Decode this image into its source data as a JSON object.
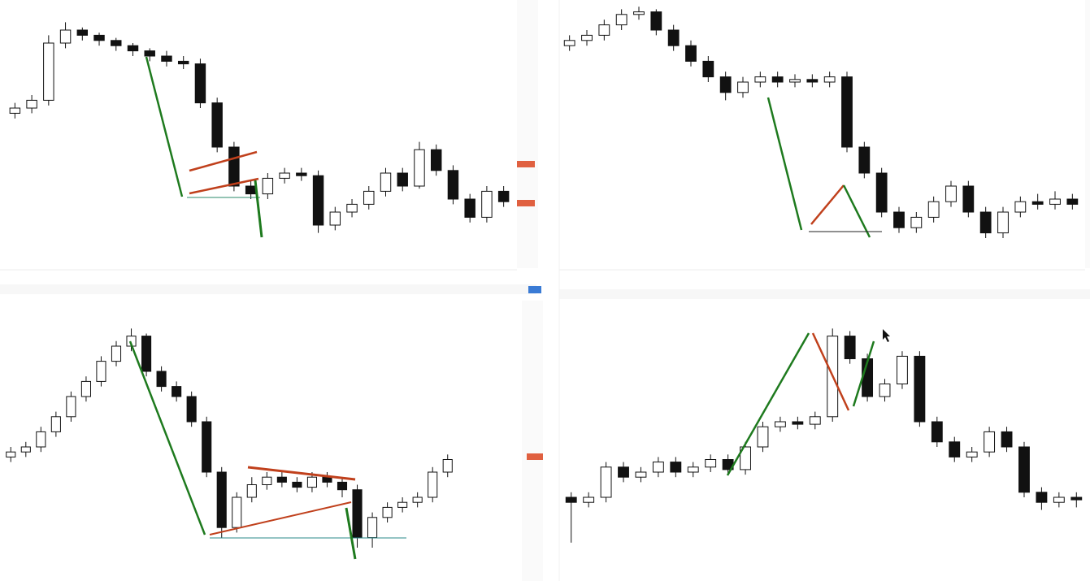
{
  "chart_data": [
    {
      "type": "candlestick",
      "up_color": "#ffffff",
      "down_color": "#111111",
      "ylim": [
        0,
        100
      ],
      "open": [
        58,
        60,
        63,
        85,
        90,
        88,
        86,
        84,
        82,
        80,
        78,
        77,
        62,
        45,
        30,
        27,
        33,
        35,
        34,
        15,
        20,
        23,
        28,
        35,
        30,
        44,
        36,
        25,
        18,
        28
      ],
      "high": [
        62,
        65,
        88,
        93,
        91,
        89,
        87,
        85,
        83,
        82,
        80,
        79,
        64,
        47,
        32,
        35,
        37,
        37,
        36,
        22,
        25,
        30,
        37,
        37,
        47,
        46,
        38,
        27,
        30,
        30
      ],
      "low": [
        56,
        58,
        61,
        83,
        86,
        84,
        82,
        80,
        78,
        76,
        75,
        60,
        43,
        28,
        25,
        25,
        31,
        32,
        12,
        13,
        18,
        21,
        26,
        28,
        29,
        34,
        23,
        16,
        16,
        22
      ],
      "close": [
        60,
        63,
        85,
        90,
        88,
        86,
        84,
        82,
        80,
        78,
        77,
        62,
        45,
        30,
        27,
        33,
        35,
        34,
        15,
        20,
        23,
        28,
        35,
        30,
        44,
        36,
        25,
        18,
        28,
        24
      ]
    },
    {
      "type": "candlestick",
      "up_color": "#ffffff",
      "down_color": "#111111",
      "ylim": [
        0,
        100
      ],
      "open": [
        84,
        86,
        88,
        92,
        96,
        97,
        90,
        84,
        78,
        72,
        66,
        70,
        72,
        70,
        71,
        70,
        72,
        45,
        35,
        20,
        14,
        18,
        24,
        30,
        20,
        12,
        20,
        24,
        23,
        25
      ],
      "high": [
        88,
        90,
        94,
        98,
        99,
        98,
        92,
        86,
        80,
        74,
        72,
        74,
        74,
        73,
        73,
        74,
        74,
        47,
        37,
        22,
        20,
        26,
        32,
        32,
        22,
        22,
        26,
        27,
        28,
        27
      ],
      "low": [
        82,
        84,
        86,
        90,
        94,
        88,
        82,
        76,
        70,
        63,
        64,
        68,
        68,
        68,
        68,
        68,
        43,
        33,
        18,
        12,
        12,
        16,
        22,
        18,
        10,
        10,
        18,
        21,
        21,
        21
      ],
      "close": [
        86,
        88,
        92,
        96,
        97,
        90,
        84,
        78,
        72,
        66,
        70,
        72,
        70,
        71,
        70,
        72,
        45,
        35,
        20,
        14,
        18,
        24,
        30,
        20,
        12,
        20,
        24,
        23,
        25,
        23
      ]
    },
    {
      "type": "candlestick",
      "up_color": "#ffffff",
      "down_color": "#111111",
      "ylim": [
        0,
        100
      ],
      "open": [
        46,
        48,
        50,
        56,
        62,
        70,
        76,
        84,
        90,
        94,
        80,
        74,
        70,
        60,
        40,
        18,
        30,
        35,
        38,
        36,
        34,
        38,
        36,
        33,
        14,
        22,
        26,
        28,
        30,
        40
      ],
      "high": [
        50,
        52,
        58,
        64,
        72,
        78,
        86,
        92,
        97,
        95,
        82,
        76,
        72,
        62,
        42,
        32,
        38,
        40,
        40,
        38,
        40,
        40,
        38,
        35,
        24,
        28,
        30,
        32,
        42,
        47
      ],
      "low": [
        44,
        46,
        48,
        54,
        60,
        68,
        74,
        82,
        88,
        78,
        72,
        68,
        58,
        38,
        14,
        16,
        28,
        33,
        34,
        32,
        32,
        34,
        30,
        10,
        10,
        20,
        24,
        26,
        28,
        38
      ],
      "close": [
        48,
        50,
        56,
        62,
        70,
        76,
        84,
        90,
        94,
        80,
        74,
        70,
        60,
        40,
        18,
        30,
        35,
        38,
        36,
        34,
        38,
        36,
        33,
        14,
        22,
        26,
        28,
        30,
        40,
        45
      ]
    },
    {
      "type": "candlestick",
      "up_color": "#ffffff",
      "down_color": "#111111",
      "ylim": [
        0,
        100
      ],
      "open": [
        30,
        28,
        30,
        42,
        38,
        40,
        44,
        40,
        42,
        45,
        41,
        50,
        58,
        60,
        59,
        62,
        94,
        85,
        70,
        75,
        86,
        60,
        52,
        46,
        48,
        56,
        50,
        32,
        28,
        30
      ],
      "high": [
        32,
        32,
        44,
        44,
        42,
        46,
        46,
        44,
        47,
        47,
        52,
        60,
        62,
        62,
        64,
        97,
        96,
        87,
        77,
        88,
        88,
        62,
        54,
        50,
        58,
        58,
        52,
        34,
        32,
        32
      ],
      "low": [
        12,
        26,
        28,
        36,
        36,
        38,
        38,
        38,
        40,
        39,
        39,
        48,
        56,
        57,
        57,
        60,
        83,
        68,
        68,
        73,
        58,
        50,
        44,
        44,
        46,
        48,
        30,
        25,
        26,
        26
      ],
      "close": [
        28,
        30,
        42,
        38,
        40,
        44,
        40,
        42,
        45,
        41,
        50,
        58,
        60,
        59,
        62,
        94,
        85,
        70,
        75,
        86,
        60,
        52,
        46,
        48,
        56,
        50,
        32,
        28,
        30,
        29
      ]
    }
  ]
}
